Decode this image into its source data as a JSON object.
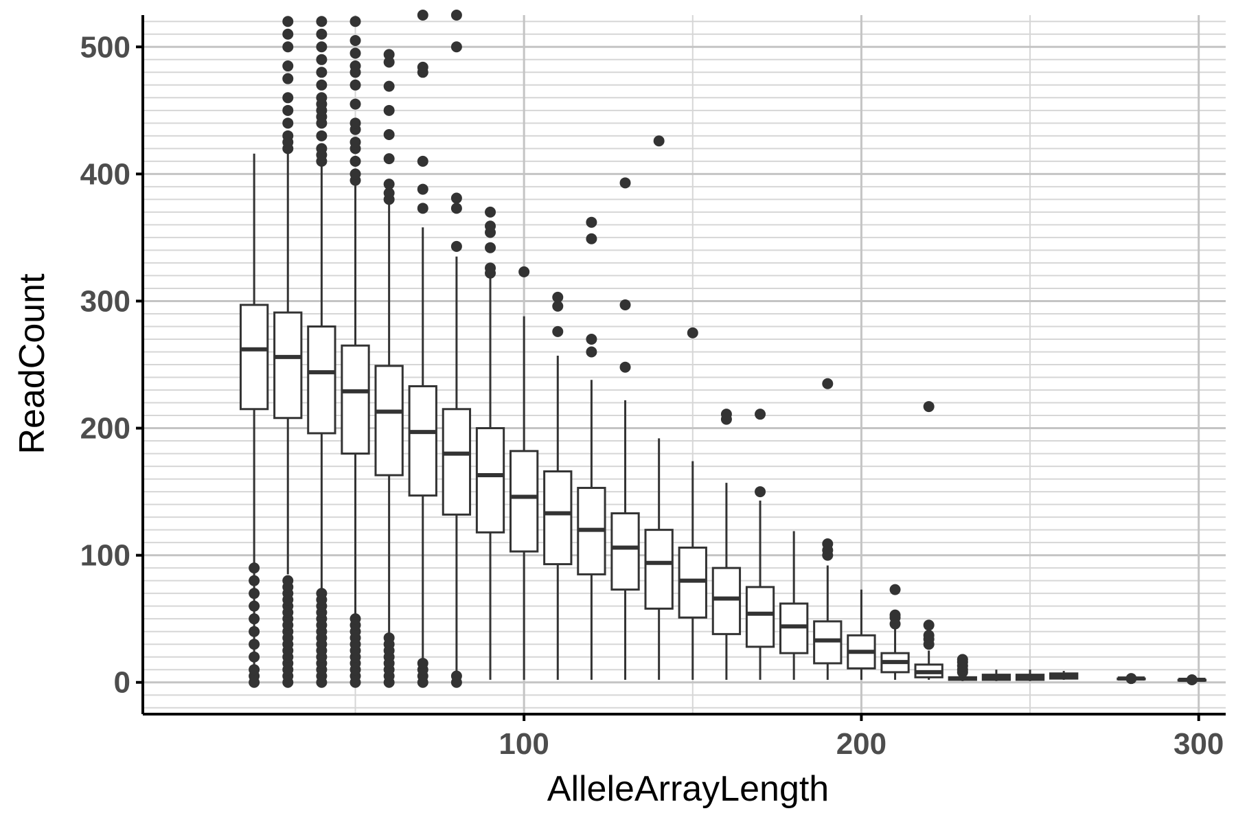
{
  "chart_data": {
    "type": "boxplot",
    "title": "",
    "xlabel": "AlleleArrayLength",
    "ylabel": "ReadCount",
    "xlim": [
      -13,
      308
    ],
    "ylim": [
      -25,
      525
    ],
    "x_ticks": [
      100,
      200,
      300
    ],
    "y_ticks": [
      0,
      100,
      200,
      300,
      400,
      500
    ],
    "x_minor_ticks": [
      50,
      150,
      250
    ],
    "y_minor_step": 10,
    "grid": true,
    "legend": "none",
    "colors": {
      "box_fill": "#ffffff",
      "box_line": "#333333",
      "grid": "#c4c4c4",
      "text": "#4d4d4d"
    },
    "boxes": [
      {
        "x": 20,
        "lower": 2,
        "q1": 215,
        "median": 262,
        "q3": 297,
        "upper": 416,
        "outliers": [
          0,
          5,
          10,
          20,
          30,
          40,
          50,
          60,
          70,
          80,
          90
        ]
      },
      {
        "x": 30,
        "lower": 85,
        "q1": 208,
        "median": 256,
        "q3": 291,
        "upper": 416,
        "outliers": [
          0,
          5,
          10,
          15,
          20,
          25,
          30,
          35,
          40,
          45,
          50,
          55,
          60,
          65,
          70,
          75,
          80,
          420,
          425,
          430,
          440,
          450,
          460,
          475,
          485,
          500,
          510,
          520
        ]
      },
      {
        "x": 40,
        "lower": 72,
        "q1": 196,
        "median": 244,
        "q3": 280,
        "upper": 410,
        "outliers": [
          0,
          5,
          10,
          15,
          20,
          25,
          30,
          35,
          40,
          45,
          50,
          55,
          60,
          65,
          70,
          410,
          415,
          420,
          430,
          440,
          445,
          450,
          455,
          460,
          470,
          480,
          490,
          500,
          510,
          520
        ]
      },
      {
        "x": 50,
        "lower": 52,
        "q1": 180,
        "median": 229,
        "q3": 265,
        "upper": 393,
        "outliers": [
          0,
          5,
          10,
          15,
          20,
          25,
          30,
          35,
          40,
          45,
          50,
          395,
          400,
          410,
          420,
          425,
          435,
          440,
          455,
          470,
          480,
          485,
          495,
          505,
          520
        ]
      },
      {
        "x": 60,
        "lower": 35,
        "q1": 163,
        "median": 213,
        "q3": 249,
        "upper": 380,
        "outliers": [
          0,
          5,
          10,
          15,
          20,
          25,
          30,
          35,
          380,
          385,
          392,
          412,
          431,
          450,
          469,
          488,
          494
        ]
      },
      {
        "x": 70,
        "lower": 18,
        "q1": 147,
        "median": 197,
        "q3": 233,
        "upper": 358,
        "outliers": [
          0,
          5,
          10,
          15,
          373,
          388,
          410,
          480,
          484,
          525
        ]
      },
      {
        "x": 80,
        "lower": 8,
        "q1": 132,
        "median": 180,
        "q3": 215,
        "upper": 335,
        "outliers": [
          0,
          5,
          343,
          373,
          381,
          500,
          525
        ]
      },
      {
        "x": 90,
        "lower": 2,
        "q1": 118,
        "median": 163,
        "q3": 200,
        "upper": 320,
        "outliers": [
          322,
          326,
          342,
          354,
          359,
          370
        ]
      },
      {
        "x": 100,
        "lower": 2,
        "q1": 103,
        "median": 146,
        "q3": 182,
        "upper": 288,
        "outliers": [
          323
        ]
      },
      {
        "x": 110,
        "lower": 2,
        "q1": 93,
        "median": 133,
        "q3": 166,
        "upper": 257,
        "outliers": [
          276,
          296,
          303
        ]
      },
      {
        "x": 120,
        "lower": 2,
        "q1": 85,
        "median": 120,
        "q3": 153,
        "upper": 238,
        "outliers": [
          260,
          270,
          349,
          362
        ]
      },
      {
        "x": 130,
        "lower": 2,
        "q1": 73,
        "median": 106,
        "q3": 133,
        "upper": 222,
        "outliers": [
          248,
          297,
          393
        ]
      },
      {
        "x": 140,
        "lower": 2,
        "q1": 58,
        "median": 94,
        "q3": 120,
        "upper": 192,
        "outliers": [
          426
        ]
      },
      {
        "x": 150,
        "lower": 2,
        "q1": 51,
        "median": 80,
        "q3": 106,
        "upper": 174,
        "outliers": [
          275
        ]
      },
      {
        "x": 160,
        "lower": 2,
        "q1": 38,
        "median": 66,
        "q3": 90,
        "upper": 157,
        "outliers": [
          207,
          211
        ]
      },
      {
        "x": 170,
        "lower": 2,
        "q1": 28,
        "median": 54,
        "q3": 75,
        "upper": 143,
        "outliers": [
          150,
          211
        ]
      },
      {
        "x": 180,
        "lower": 2,
        "q1": 23,
        "median": 44,
        "q3": 62,
        "upper": 119,
        "outliers": []
      },
      {
        "x": 190,
        "lower": 2,
        "q1": 15,
        "median": 33,
        "q3": 48,
        "upper": 92,
        "outliers": [
          100,
          104,
          109,
          235
        ]
      },
      {
        "x": 200,
        "lower": 2,
        "q1": 11,
        "median": 24,
        "q3": 37,
        "upper": 73,
        "outliers": []
      },
      {
        "x": 210,
        "lower": 2,
        "q1": 8,
        "median": 16,
        "q3": 23,
        "upper": 44,
        "outliers": [
          46,
          51,
          53,
          73
        ]
      },
      {
        "x": 220,
        "lower": 2,
        "q1": 4,
        "median": 8,
        "q3": 14,
        "upper": 25,
        "outliers": [
          30,
          34,
          37,
          45,
          217
        ]
      },
      {
        "x": 230,
        "lower": 1,
        "q1": 2,
        "median": 3,
        "q3": 4,
        "upper": 6,
        "outliers": [
          8,
          10,
          13,
          16,
          18
        ]
      },
      {
        "x": 240,
        "lower": 1,
        "q1": 2,
        "median": 4,
        "q3": 6,
        "upper": 10,
        "outliers": []
      },
      {
        "x": 250,
        "lower": 1,
        "q1": 2,
        "median": 4,
        "q3": 6,
        "upper": 10,
        "outliers": []
      },
      {
        "x": 260,
        "lower": 2,
        "q1": 3,
        "median": 5,
        "q3": 7,
        "upper": 9,
        "outliers": []
      },
      {
        "x": 280,
        "lower": 3,
        "q1": 3,
        "median": 3,
        "q3": 3,
        "upper": 3,
        "outliers": [
          3
        ]
      },
      {
        "x": 298,
        "lower": 2,
        "q1": 2,
        "median": 2,
        "q3": 2,
        "upper": 2,
        "outliers": [
          2
        ]
      }
    ]
  }
}
